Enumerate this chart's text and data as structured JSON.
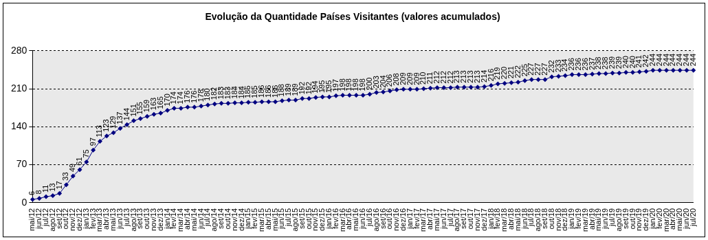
{
  "chart_data": {
    "type": "line",
    "title": "Evolução da Quantidade Países Visitantes (valores acumulados)",
    "categories": [
      "mai/12",
      "jun/12",
      "jul/12",
      "ago/12",
      "set/12",
      "out/12",
      "nov/12",
      "dez/12",
      "jan/13",
      "fev/13",
      "mar/13",
      "abr/13",
      "mai/13",
      "jun/13",
      "jul/13",
      "ago/13",
      "set/13",
      "out/13",
      "nov/13",
      "dez/13",
      "jan/14",
      "fev/14",
      "mar/14",
      "abr/14",
      "mai/14",
      "jun/14",
      "jul/14",
      "ago/14",
      "set/14",
      "out/14",
      "nov/14",
      "dez/14",
      "jan/15",
      "fev/15",
      "mar/15",
      "abr/15",
      "mai/15",
      "jun/15",
      "jul/15",
      "ago/15",
      "set/15",
      "out/15",
      "nov/15",
      "dez/15",
      "jan/16",
      "fev/16",
      "mar/16",
      "abr/16",
      "mai/16",
      "jun/16",
      "jul/16",
      "ago/16",
      "set/16",
      "out/16",
      "nov/16",
      "dez/16",
      "jan/17",
      "fev/17",
      "mar/17",
      "abr/17",
      "mai/17",
      "jun/17",
      "jul/17",
      "ago/17",
      "set/17",
      "out/17",
      "nov/17",
      "dez/17",
      "jan/18",
      "fev/18",
      "mar/18",
      "abr/18",
      "mai/18",
      "jun/18",
      "jul/18",
      "ago/18",
      "set/18",
      "out/18",
      "nov/18",
      "dez/18",
      "jan/19",
      "fev/19",
      "mar/19",
      "abr/19",
      "mai/19",
      "jun/19",
      "jul/19",
      "ago/19",
      "set/19",
      "out/19",
      "nov/19",
      "dez/19",
      "jan/20",
      "fev/20",
      "mar/20",
      "abr/20",
      "mai/20",
      "jun/20",
      "jul/20"
    ],
    "series": [
      {
        "color": "#000080",
        "values": [
          6,
          8,
          11,
          13,
          17,
          33,
          49,
          61,
          75,
          97,
          113,
          123,
          129,
          137,
          144,
          151,
          155,
          159,
          163,
          165,
          170,
          174,
          174,
          176,
          176,
          178,
          180,
          182,
          183,
          183,
          184,
          184,
          185,
          185,
          186,
          186,
          186,
          188,
          189,
          189,
          192,
          192,
          194,
          195,
          195,
          197,
          198,
          198,
          198,
          198,
          200,
          203,
          204,
          206,
          208,
          209,
          209,
          209,
          210,
          211,
          212,
          212,
          212,
          213,
          213,
          213,
          213,
          214,
          216,
          219,
          220,
          221,
          222,
          225,
          227,
          227,
          227,
          232,
          233,
          234,
          236,
          236,
          236,
          237,
          238,
          238,
          239,
          239,
          240,
          240,
          241,
          242,
          244,
          244,
          244,
          244,
          244,
          244,
          244
        ]
      }
    ],
    "ylim": [
      0,
      280
    ],
    "yticks": [
      0,
      70,
      140,
      210,
      280
    ],
    "grid": "y",
    "marker": "diamond",
    "line_style": "solid",
    "data_labels": true
  }
}
